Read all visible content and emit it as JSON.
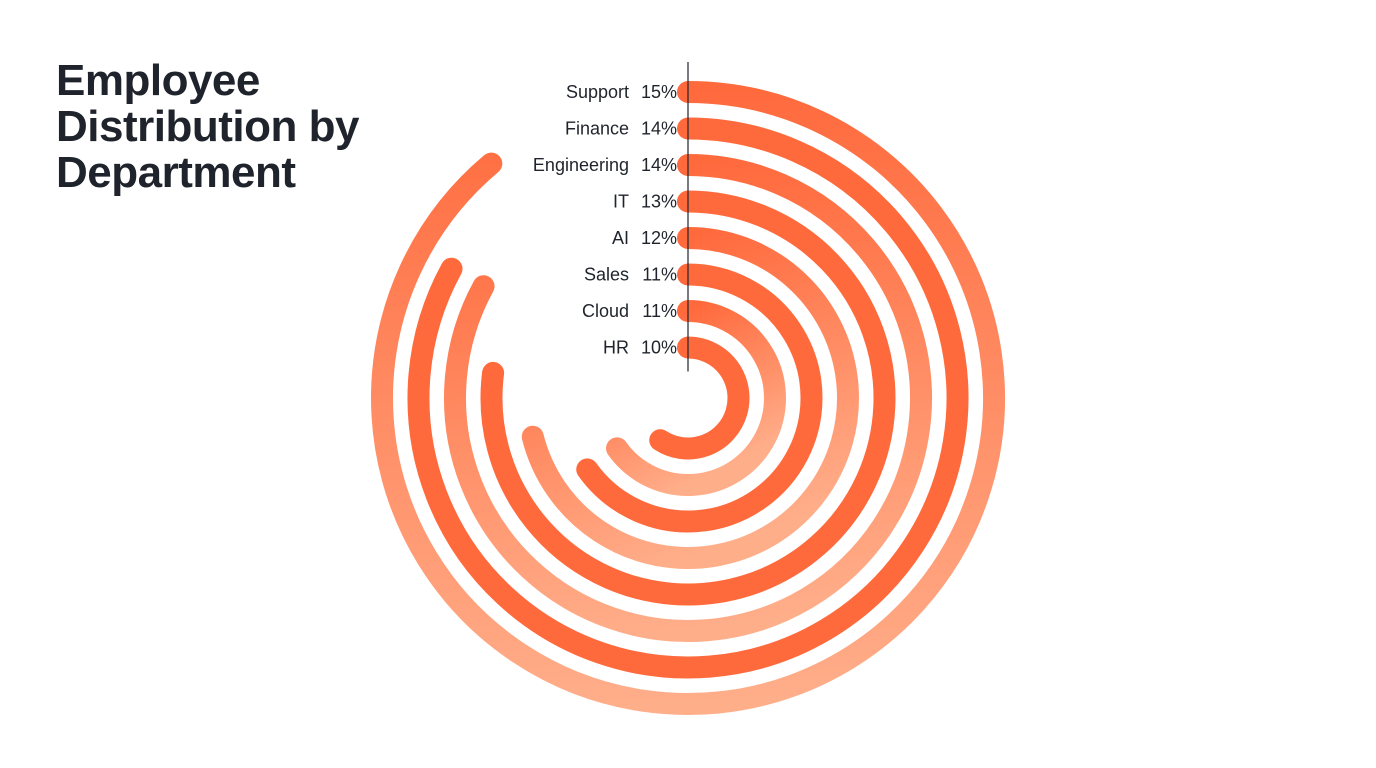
{
  "colors": {
    "background": "#ffffff",
    "text": "#1f232b",
    "axis_line": "#1f232b",
    "bar_dark": "#ff6a3d",
    "bar_light": "#ffae8a"
  },
  "chart_data": {
    "type": "radial-bar",
    "title": "Employee Distribution by Department",
    "categories": [
      "Support",
      "Finance",
      "Engineering",
      "IT",
      "AI",
      "Sales",
      "Cloud",
      "HR"
    ],
    "values": [
      15,
      14,
      14,
      13,
      12,
      11,
      11,
      10
    ],
    "value_labels": [
      "15%",
      "14%",
      "14%",
      "13%",
      "12%",
      "11%",
      "11%",
      "10%"
    ],
    "unit": "%",
    "sort": "descending",
    "direction": "clockwise from top",
    "legend": "none",
    "grid": false
  }
}
